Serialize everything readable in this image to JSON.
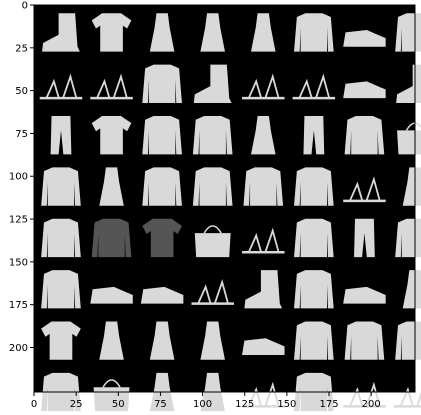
{
  "chart_data": {
    "type": "heatmap",
    "title": "",
    "xlabel": "",
    "ylabel": "",
    "grid": false,
    "legend": "none",
    "xlim": [
      0,
      226
    ],
    "ylim": [
      226,
      0
    ],
    "x_ticks": [
      0,
      25,
      50,
      75,
      100,
      125,
      150,
      175,
      200
    ],
    "y_ticks": [
      0,
      25,
      50,
      75,
      100,
      125,
      150,
      175,
      200
    ],
    "image_grid": {
      "rows": 8,
      "cols": 8,
      "tile_size": 28,
      "padding": 2,
      "background": "#000000"
    },
    "tiles": [
      [
        "ankle-boot",
        "t-shirt-printed",
        "dress-sleeveless",
        "dress-short-sleeve",
        "dress-sleeveless",
        "pullover-striped",
        "sneaker",
        "pullover"
      ],
      [
        "sandal",
        "sandal",
        "shirt",
        "ankle-boot",
        "sandal",
        "sandal",
        "sneaker",
        "ankle-boot"
      ],
      [
        "trouser",
        "t-shirt",
        "pullover",
        "coat",
        "dress",
        "trouser",
        "coat-hooded",
        "bag-patterned"
      ],
      [
        "pullover",
        "dress",
        "pullover-striped",
        "coat",
        "coat",
        "coat",
        "sandal-flat",
        "dress"
      ],
      [
        "shirt",
        "pullover-dark",
        "t-shirt-dark",
        "bag",
        "sandal",
        "pullover",
        "trouser",
        "shirt"
      ],
      [
        "pullover",
        "sneaker",
        "sneaker",
        "sandal",
        "ankle-boot",
        "pullover",
        "sneaker",
        "dress"
      ],
      [
        "t-shirt-printed",
        "dress",
        "dress",
        "dress",
        "sneaker",
        "pullover",
        "pullover-hooded",
        "shirt"
      ],
      [
        "shirt",
        "bag",
        "dress",
        "dress",
        "sandal",
        "shirt-patterned",
        "sandal-flat",
        "sandal"
      ]
    ]
  },
  "colors": {
    "background": "#000000",
    "axis": "#000000",
    "tile_fill": "#d9d9d9",
    "tile_dark": "#555555"
  }
}
